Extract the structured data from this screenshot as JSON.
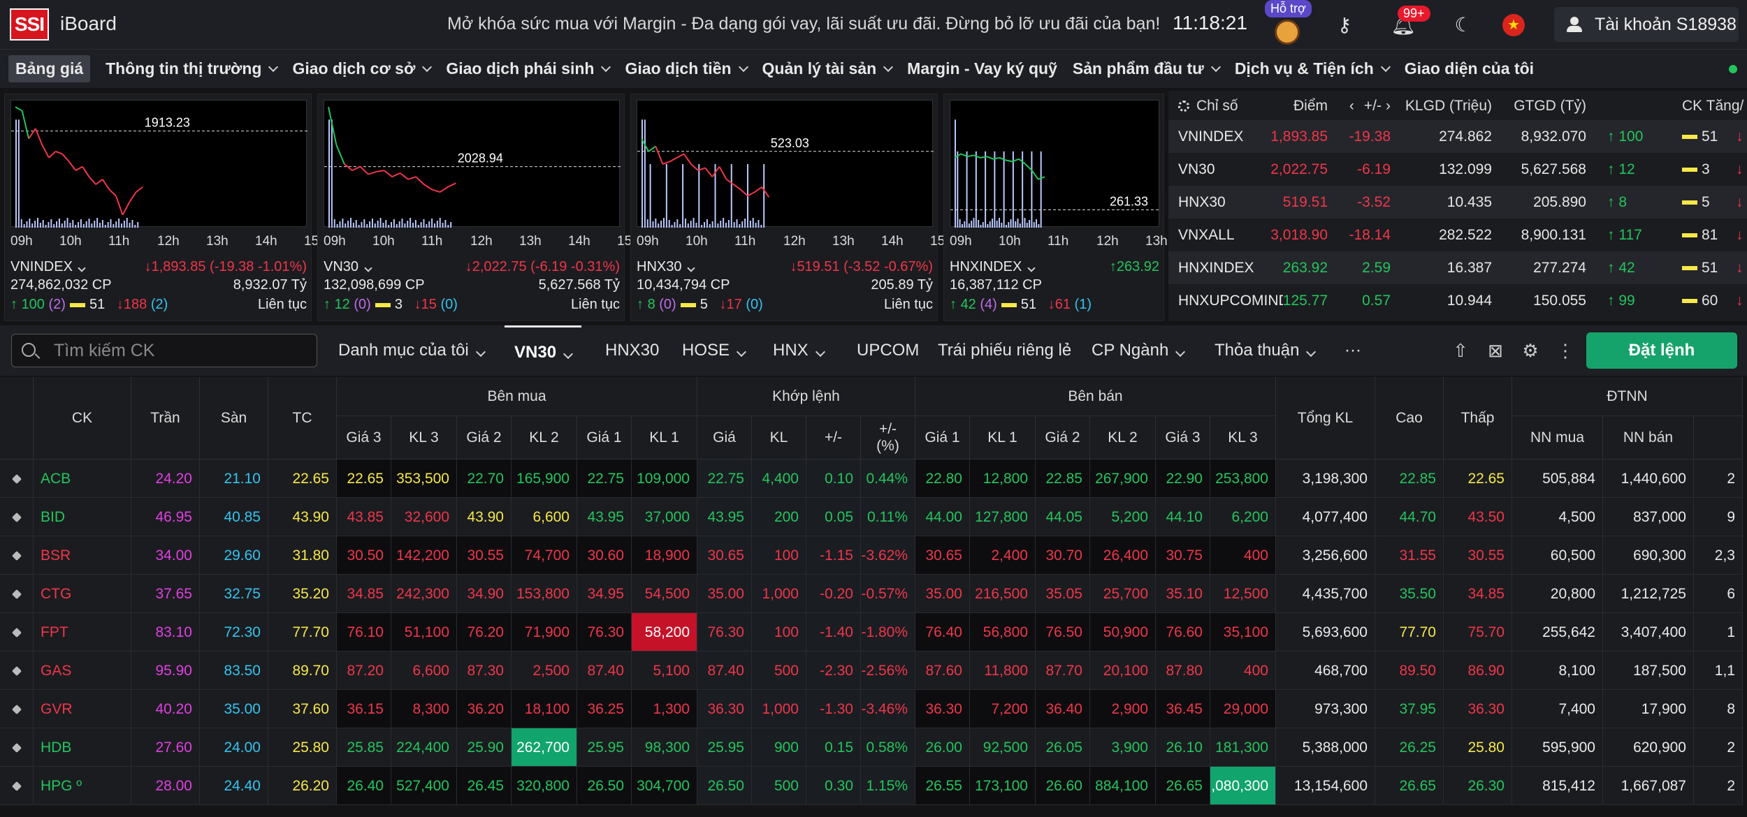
{
  "topbar": {
    "logo": "SSI",
    "app": "iBoard",
    "promo": "Mở khóa sức mua với Margin - Đa dạng gói vay, lãi suất ưu đãi. Đừng bỏ lỡ ưu đãi của bạn!",
    "clock": "11:18:21",
    "support": "Hỗ trợ",
    "notif": "99+",
    "account": "Tài khoản S18938"
  },
  "nav": [
    "Bảng giá",
    "Thông tin thị trường",
    "Giao dịch cơ sở",
    "Giao dịch phái sinh",
    "Giao dịch tiền",
    "Quản lý tài sản",
    "Margin - Vay ký quỹ",
    "Sản phẩm đầu tư",
    "Dịch vụ & Tiện ích",
    "Giao diện của tôi"
  ],
  "index_panels": [
    {
      "name": "VNINDEX",
      "ref": "1913.23",
      "change": "↓1,893.85 (-19.38 -1.01%)",
      "volume": "274,862,032 CP",
      "value": "8,932.07 Tỷ",
      "adv": "100",
      "adv_ceil": "(2)",
      "flat": "51",
      "dec": "188",
      "dec_floor": "(2)",
      "session": "Liên tục",
      "times": [
        "09h",
        "10h",
        "11h",
        "12h",
        "13h",
        "14h",
        "15h"
      ]
    },
    {
      "name": "VN30",
      "ref": "2028.94",
      "change": "↓2,022.75 (-6.19 -0.31%)",
      "volume": "132,098,699 CP",
      "value": "5,627.568 Tỷ",
      "adv": "12",
      "adv_ceil": "(0)",
      "flat": "3",
      "dec": "15",
      "dec_floor": "(0)",
      "session": "Liên tục",
      "times": [
        "09h",
        "10h",
        "11h",
        "12h",
        "13h",
        "14h",
        "15h"
      ]
    },
    {
      "name": "HNX30",
      "ref": "523.03",
      "change": "↓519.51 (-3.52 -0.67%)",
      "volume": "10,434,794 CP",
      "value": "205.89 Tỷ",
      "adv": "8",
      "adv_ceil": "(0)",
      "flat": "5",
      "dec": "17",
      "dec_floor": "(0)",
      "session": "Liên tục",
      "times": [
        "09h",
        "10h",
        "11h",
        "12h",
        "13h",
        "14h",
        "15h"
      ]
    },
    {
      "name": "HNXINDEX",
      "ref": "261.33",
      "change": "↑263.92",
      "volume": "16,387,112 CP",
      "value": "",
      "adv": "42",
      "adv_ceil": "(4)",
      "flat": "51",
      "dec": "61",
      "dec_floor": "(1)",
      "session": "",
      "times": [
        "09h",
        "10h",
        "11h",
        "12h",
        "13h"
      ]
    }
  ],
  "index_table": {
    "headers": [
      "Chỉ số",
      "Điểm",
      "+/-",
      "KLGD (Triệu)",
      "GTGD (Tỷ)",
      "CK Tăng/"
    ],
    "rows": [
      {
        "name": "VNINDEX",
        "point": "1,893.85",
        "chg": "-19.38",
        "vol": "274.862",
        "val": "8,932.070",
        "up": "100",
        "flat": "51",
        "dir": "down"
      },
      {
        "name": "VN30",
        "point": "2,022.75",
        "chg": "-6.19",
        "vol": "132.099",
        "val": "5,627.568",
        "up": "12",
        "flat": "3",
        "dir": "down"
      },
      {
        "name": "HNX30",
        "point": "519.51",
        "chg": "-3.52",
        "vol": "10.435",
        "val": "205.890",
        "up": "8",
        "flat": "5",
        "dir": "down"
      },
      {
        "name": "VNXALL",
        "point": "3,018.90",
        "chg": "-18.14",
        "vol": "282.522",
        "val": "8,900.131",
        "up": "117",
        "flat": "81",
        "dir": "down"
      },
      {
        "name": "HNXINDEX",
        "point": "263.92",
        "chg": "2.59",
        "vol": "16.387",
        "val": "277.274",
        "up": "42",
        "flat": "51",
        "dir": "up"
      },
      {
        "name": "HNXUPCOMINDE",
        "point": "125.77",
        "chg": "0.57",
        "vol": "10.944",
        "val": "150.055",
        "up": "99",
        "flat": "60",
        "dir": "up"
      }
    ]
  },
  "toolbar": {
    "search_placeholder": "Tìm kiếm CK",
    "tabs": [
      "Danh mục của tôi",
      "VN30",
      "HNX30",
      "HOSE",
      "HNX",
      "UPCOM",
      "Trái phiếu riêng lẻ",
      "CP Ngành",
      "Thỏa thuận",
      "···"
    ],
    "order": "Đặt lệnh"
  },
  "board": {
    "groups": {
      "buy": "Bên mua",
      "match": "Khớp lệnh",
      "sell": "Bên bán",
      "foreign": "ĐTNN"
    },
    "cols": {
      "sym": "CK",
      "ceil": "Trần",
      "floor": "Sàn",
      "ref": "TC",
      "b3": "Giá 3",
      "bv3": "KL 3",
      "b2": "Giá 2",
      "bv2": "KL 2",
      "b1": "Giá 1",
      "bv1": "KL 1",
      "mp": "Giá",
      "mv": "KL",
      "mc": "+/-",
      "mpct": "+/-\n(%)",
      "s1": "Giá 1",
      "sv1": "KL 1",
      "s2": "Giá 2",
      "sv2": "KL 2",
      "s3": "Giá 3",
      "sv3": "KL 3",
      "total": "Tổng KL",
      "high": "Cao",
      "low": "Thấp",
      "nnb": "NN mua",
      "nns": "NN bán"
    },
    "rows": [
      {
        "sym": "ACB",
        "ceil": "24.20",
        "floor": "21.10",
        "ref": "22.65",
        "b3": "22.65",
        "bv3": "353,500",
        "b2": "22.70",
        "bv2": "165,900",
        "b1": "22.75",
        "bv1": "109,000",
        "mp": "22.75",
        "mv": "4,400",
        "mc": "0.10",
        "mpct": "0.44%",
        "s1": "22.80",
        "sv1": "12,800",
        "s2": "22.85",
        "sv2": "267,900",
        "s3": "22.90",
        "sv3": "253,800",
        "total": "3,198,300",
        "high": "22.85",
        "low": "22.65",
        "nnb": "505,884",
        "nns": "1,440,600",
        "room": "2"
      },
      {
        "sym": "BID",
        "ceil": "46.95",
        "floor": "40.85",
        "ref": "43.90",
        "b3": "43.85",
        "bv3": "32,600",
        "b2": "43.90",
        "bv2": "6,600",
        "b1": "43.95",
        "bv1": "37,000",
        "mp": "43.95",
        "mv": "200",
        "mc": "0.05",
        "mpct": "0.11%",
        "s1": "44.00",
        "sv1": "127,800",
        "s2": "44.05",
        "sv2": "5,200",
        "s3": "44.10",
        "sv3": "6,200",
        "total": "4,077,400",
        "high": "44.70",
        "low": "43.50",
        "nnb": "4,500",
        "nns": "837,000",
        "room": "9"
      },
      {
        "sym": "BSR",
        "ceil": "34.00",
        "floor": "29.60",
        "ref": "31.80",
        "b3": "30.50",
        "bv3": "142,200",
        "b2": "30.55",
        "bv2": "74,700",
        "b1": "30.60",
        "bv1": "18,900",
        "mp": "30.65",
        "mv": "100",
        "mc": "-1.15",
        "mpct": "-3.62%",
        "s1": "30.65",
        "sv1": "2,400",
        "s2": "30.70",
        "sv2": "26,400",
        "s3": "30.75",
        "sv3": "400",
        "total": "3,256,600",
        "high": "31.55",
        "low": "30.55",
        "nnb": "60,500",
        "nns": "690,300",
        "room": "2,3"
      },
      {
        "sym": "CTG",
        "ceil": "37.65",
        "floor": "32.75",
        "ref": "35.20",
        "b3": "34.85",
        "bv3": "242,300",
        "b2": "34.90",
        "bv2": "153,800",
        "b1": "34.95",
        "bv1": "54,500",
        "mp": "35.00",
        "mv": "1,000",
        "mc": "-0.20",
        "mpct": "-0.57%",
        "s1": "35.00",
        "sv1": "216,500",
        "s2": "35.05",
        "sv2": "25,700",
        "s3": "35.10",
        "sv3": "12,500",
        "total": "4,435,700",
        "high": "35.50",
        "low": "34.85",
        "nnb": "20,800",
        "nns": "1,212,725",
        "room": "6"
      },
      {
        "sym": "FPT",
        "ceil": "83.10",
        "floor": "72.30",
        "ref": "77.70",
        "b3": "76.10",
        "bv3": "51,100",
        "b2": "76.20",
        "bv2": "71,900",
        "b1": "76.30",
        "bv1": "58,200",
        "mp": "76.30",
        "mv": "100",
        "mc": "-1.40",
        "mpct": "-1.80%",
        "s1": "76.40",
        "sv1": "56,800",
        "s2": "76.50",
        "sv2": "50,900",
        "s3": "76.60",
        "sv3": "35,100",
        "total": "5,693,600",
        "high": "77.70",
        "low": "75.70",
        "nnb": "255,642",
        "nns": "3,407,400",
        "room": "1"
      },
      {
        "sym": "GAS",
        "ceil": "95.90",
        "floor": "83.50",
        "ref": "89.70",
        "b3": "87.20",
        "bv3": "6,600",
        "b2": "87.30",
        "bv2": "2,500",
        "b1": "87.40",
        "bv1": "5,100",
        "mp": "87.40",
        "mv": "500",
        "mc": "-2.30",
        "mpct": "-2.56%",
        "s1": "87.60",
        "sv1": "11,800",
        "s2": "87.70",
        "sv2": "20,100",
        "s3": "87.80",
        "sv3": "400",
        "total": "468,700",
        "high": "89.50",
        "low": "86.90",
        "nnb": "8,100",
        "nns": "187,500",
        "room": "1,1"
      },
      {
        "sym": "GVR",
        "ceil": "40.20",
        "floor": "35.00",
        "ref": "37.60",
        "b3": "36.15",
        "bv3": "8,300",
        "b2": "36.20",
        "bv2": "18,100",
        "b1": "36.25",
        "bv1": "1,300",
        "mp": "36.30",
        "mv": "1,000",
        "mc": "-1.30",
        "mpct": "-3.46%",
        "s1": "36.30",
        "sv1": "7,200",
        "s2": "36.40",
        "sv2": "2,900",
        "s3": "36.45",
        "sv3": "29,000",
        "total": "973,300",
        "high": "37.95",
        "low": "36.30",
        "nnb": "7,400",
        "nns": "17,900",
        "room": "8"
      },
      {
        "sym": "HDB",
        "ceil": "27.60",
        "floor": "24.00",
        "ref": "25.80",
        "b3": "25.85",
        "bv3": "224,400",
        "b2": "25.90",
        "bv2": "262,700",
        "b1": "25.95",
        "bv1": "98,300",
        "mp": "25.95",
        "mv": "900",
        "mc": "0.15",
        "mpct": "0.58%",
        "s1": "26.00",
        "sv1": "92,500",
        "s2": "26.05",
        "sv2": "3,900",
        "s3": "26.10",
        "sv3": "181,300",
        "total": "5,388,000",
        "high": "26.25",
        "low": "25.80",
        "nnb": "595,900",
        "nns": "620,900",
        "room": "2"
      },
      {
        "sym": "HPG º",
        "ceil": "28.00",
        "floor": "24.40",
        "ref": "26.20",
        "b3": "26.40",
        "bv3": "527,400",
        "b2": "26.45",
        "bv2": "320,800",
        "b1": "26.50",
        "bv1": "304,700",
        "mp": "26.50",
        "mv": "500",
        "mc": "0.30",
        "mpct": "1.15%",
        "s1": "26.55",
        "sv1": "173,100",
        "s2": "26.60",
        "sv2": "884,100",
        "s3": "26.65",
        "sv3": ",080,300",
        "total": "13,154,600",
        "high": "26.65",
        "low": "26.30",
        "nnb": "815,412",
        "nns": "1,667,087",
        "room": "2"
      }
    ]
  },
  "colors": {
    "up": "#23c55e",
    "down": "#f0364a",
    "ref": "#f6e84a",
    "ceil": "#e040e0",
    "floor": "#33c4ee",
    "order_button": "#16a36b"
  }
}
